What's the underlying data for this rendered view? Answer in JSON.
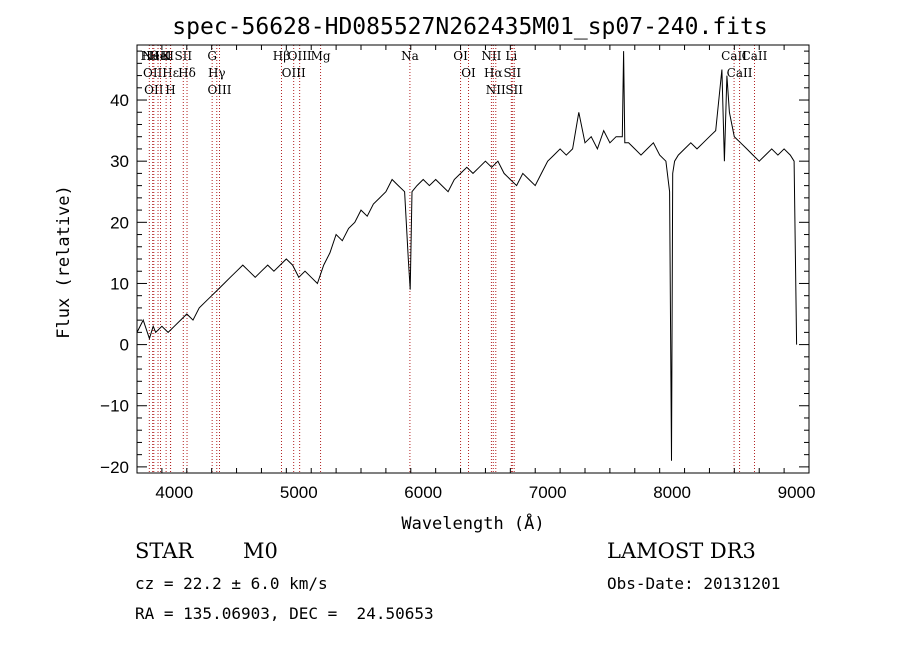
{
  "chart_data": {
    "type": "line",
    "title": "spec-56628-HD085527N262435M01_sp07-240.fits",
    "xlabel": "Wavelength (Å)",
    "ylabel": "Flux (relative)",
    "xlim": [
      3700,
      9100
    ],
    "ylim": [
      -21,
      49
    ],
    "xticks": [
      4000,
      5000,
      6000,
      7000,
      8000,
      9000
    ],
    "yticks": [
      -20,
      -10,
      0,
      10,
      20,
      30,
      40
    ],
    "grid": false,
    "series": [
      {
        "x": [
          3700,
          3750,
          3800,
          3830,
          3850,
          3900,
          3950,
          4000,
          4050,
          4100,
          4150,
          4200,
          4250,
          4300,
          4350,
          4400,
          4450,
          4500,
          4550,
          4600,
          4650,
          4700,
          4750,
          4800,
          4850,
          4900,
          4950,
          5000,
          5050,
          5100,
          5150,
          5200,
          5250,
          5300,
          5350,
          5400,
          5450,
          5500,
          5550,
          5600,
          5650,
          5700,
          5750,
          5800,
          5850,
          5880,
          5895,
          5910,
          5950,
          6000,
          6050,
          6100,
          6150,
          6200,
          6250,
          6300,
          6350,
          6400,
          6450,
          6500,
          6550,
          6600,
          6650,
          6700,
          6750,
          6800,
          6850,
          6900,
          6950,
          7000,
          7050,
          7100,
          7150,
          7200,
          7250,
          7300,
          7350,
          7400,
          7450,
          7500,
          7550,
          7600,
          7610,
          7620,
          7650,
          7700,
          7750,
          7800,
          7850,
          7900,
          7950,
          7980,
          7995,
          8005,
          8020,
          8050,
          8100,
          8150,
          8200,
          8250,
          8300,
          8350,
          8400,
          8420,
          8440,
          8460,
          8500,
          8550,
          8600,
          8650,
          8700,
          8750,
          8800,
          8850,
          8900,
          8950,
          8980,
          9000
        ],
        "y": [
          2,
          4,
          1,
          3,
          2,
          3,
          2,
          3,
          4,
          5,
          4,
          6,
          7,
          8,
          9,
          10,
          11,
          12,
          13,
          12,
          11,
          12,
          13,
          12,
          13,
          14,
          13,
          11,
          12,
          11,
          10,
          13,
          15,
          18,
          17,
          19,
          20,
          22,
          21,
          23,
          24,
          25,
          27,
          26,
          25,
          14,
          9,
          25,
          26,
          27,
          26,
          27,
          26,
          25,
          27,
          28,
          29,
          28,
          29,
          30,
          29,
          30,
          28,
          27,
          26,
          28,
          27,
          26,
          28,
          30,
          31,
          32,
          31,
          32,
          38,
          33,
          34,
          32,
          35,
          33,
          34,
          34,
          48,
          33,
          33,
          32,
          31,
          32,
          33,
          31,
          30,
          25,
          -19,
          28,
          30,
          31,
          32,
          33,
          32,
          33,
          34,
          35,
          45,
          30,
          44,
          38,
          34,
          33,
          32,
          31,
          30,
          31,
          32,
          31,
          32,
          31,
          30,
          0
        ],
        "color": "#000000"
      }
    ],
    "line_markers": [
      {
        "w": 3799,
        "label": "Hθ"
      },
      {
        "w": 3826,
        "label": "OII"
      },
      {
        "w": 3835,
        "label": "OII"
      },
      {
        "w": 3869,
        "label": "NeIII"
      },
      {
        "w": 3889,
        "label": "HeI"
      },
      {
        "w": 3934,
        "label": "K"
      },
      {
        "w": 3970,
        "label": "Hε"
      },
      {
        "w": 3969,
        "label": "H"
      },
      {
        "w": 4072,
        "label": "SII"
      },
      {
        "w": 4102,
        "label": "Hδ"
      },
      {
        "w": 4304,
        "label": "G"
      },
      {
        "w": 4341,
        "label": "Hγ"
      },
      {
        "w": 4363,
        "label": "OIII"
      },
      {
        "w": 4861,
        "label": "Hβ"
      },
      {
        "w": 4959,
        "label": "OIII"
      },
      {
        "w": 5007,
        "label": "OIII"
      },
      {
        "w": 5175,
        "label": "Mg"
      },
      {
        "w": 5893,
        "label": "Na"
      },
      {
        "w": 6300,
        "label": "OI"
      },
      {
        "w": 6364,
        "label": "OI"
      },
      {
        "w": 6548,
        "label": "NII"
      },
      {
        "w": 6563,
        "label": "Hα"
      },
      {
        "w": 6583,
        "label": "NII"
      },
      {
        "w": 6708,
        "label": "Li"
      },
      {
        "w": 6716,
        "label": "SII"
      },
      {
        "w": 6731,
        "label": "SII"
      },
      {
        "w": 8498,
        "label": "CaII"
      },
      {
        "w": 8542,
        "label": "CaII"
      },
      {
        "w": 8662,
        "label": "CaII"
      }
    ]
  },
  "info": {
    "class_label": "STAR",
    "subclass": "M0",
    "survey": "LAMOST DR3",
    "redshift": "cz = 22.2 ± 6.0 km/s",
    "obs_date": "Obs-Date: 20131201",
    "coords": "RA = 135.06903, DEC =  24.50653"
  }
}
